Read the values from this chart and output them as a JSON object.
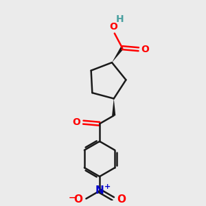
{
  "background_color": "#ebebeb",
  "bond_color": "#1a1a1a",
  "oxygen_color": "#ff0000",
  "nitrogen_color": "#0000cc",
  "hydrogen_color": "#4aa0a0",
  "line_width": 1.8,
  "fig_size": [
    3.0,
    3.0
  ],
  "dpi": 100,
  "xlim": [
    0,
    10
  ],
  "ylim": [
    0,
    10
  ]
}
